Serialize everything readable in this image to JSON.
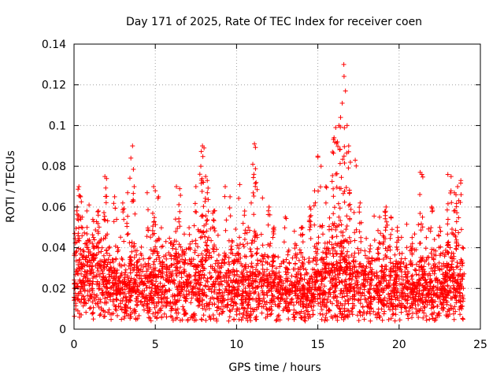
{
  "chart_data": {
    "type": "scatter",
    "title": "Day 171 of 2025, Rate Of TEC Index for receiver coen",
    "xlabel": "GPS time / hours",
    "ylabel": "ROTI / TECUs",
    "xlim": [
      0,
      25
    ],
    "ylim": [
      0,
      0.14
    ],
    "xticks": [
      "0",
      "5",
      "10",
      "15",
      "20",
      "25"
    ],
    "yticks": [
      "0",
      "0.02",
      "0.04",
      "0.06",
      "0.08",
      "0.1",
      "0.12",
      "0.14"
    ],
    "grid": true,
    "marker": "+",
    "series": [
      {
        "color": "#ff0000",
        "x": [
          0.2,
          0.3,
          0.4,
          0.5,
          0.8,
          1.2,
          1.5,
          1.9,
          2.0,
          2.5,
          3.0,
          3.3,
          3.5,
          3.6,
          3.7,
          4.5,
          4.9,
          5.0,
          5.2,
          6.3,
          6.5,
          7.5,
          7.8,
          7.9,
          8.0,
          8.1,
          8.2,
          8.6,
          9.3,
          9.6,
          10.2,
          10.5,
          10.9,
          11.0,
          11.1,
          11.2,
          12.0,
          12.3,
          13.0,
          14.0,
          14.5,
          14.8,
          15.0,
          15.2,
          15.5,
          15.9,
          16.0,
          16.1,
          16.2,
          16.3,
          16.4,
          16.5,
          16.6,
          16.7,
          16.8,
          16.9,
          17.0,
          17.3,
          17.6,
          18.8,
          19.2,
          19.5,
          19.9,
          20.8,
          21.3,
          21.4,
          22.0,
          22.5,
          23.0,
          23.2,
          23.4,
          23.5,
          23.6,
          23.8
        ],
        "y": [
          0.06,
          0.07,
          0.065,
          0.055,
          0.05,
          0.045,
          0.058,
          0.075,
          0.074,
          0.065,
          0.062,
          0.067,
          0.084,
          0.09,
          0.07,
          0.067,
          0.07,
          0.068,
          0.065,
          0.07,
          0.069,
          0.07,
          0.08,
          0.09,
          0.089,
          0.075,
          0.073,
          0.058,
          0.07,
          0.065,
          0.071,
          0.058,
          0.062,
          0.081,
          0.091,
          0.072,
          0.06,
          0.05,
          0.055,
          0.05,
          0.06,
          0.068,
          0.085,
          0.08,
          0.07,
          0.087,
          0.094,
          0.099,
          0.092,
          0.1,
          0.104,
          0.111,
          0.13,
          0.117,
          0.1,
          0.09,
          0.082,
          0.083,
          0.062,
          0.055,
          0.06,
          0.055,
          0.05,
          0.045,
          0.077,
          0.076,
          0.06,
          0.05,
          0.076,
          0.075,
          0.067,
          0.066,
          0.07,
          0.073
        ],
        "baseline_x": [
          0,
          1,
          2,
          3,
          4,
          5,
          6,
          7,
          8,
          9,
          10,
          11,
          12,
          13,
          14,
          15,
          16,
          17,
          18,
          19,
          20,
          21,
          22,
          23,
          24
        ],
        "baseline_mean": [
          0.022,
          0.023,
          0.021,
          0.02,
          0.02,
          0.019,
          0.02,
          0.021,
          0.022,
          0.02,
          0.02,
          0.021,
          0.019,
          0.018,
          0.019,
          0.02,
          0.024,
          0.022,
          0.02,
          0.02,
          0.02,
          0.019,
          0.02,
          0.021,
          0.02
        ],
        "baseline_spread": [
          0.014,
          0.015,
          0.012,
          0.012,
          0.012,
          0.011,
          0.012,
          0.013,
          0.015,
          0.012,
          0.013,
          0.013,
          0.011,
          0.01,
          0.011,
          0.012,
          0.016,
          0.014,
          0.012,
          0.012,
          0.012,
          0.011,
          0.012,
          0.013,
          0.012
        ]
      }
    ]
  }
}
